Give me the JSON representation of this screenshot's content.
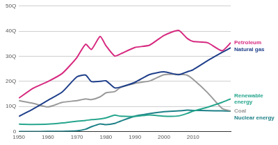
{
  "chart_data": {
    "type": "line",
    "x": [
      1950,
      1955,
      1960,
      1965,
      1970,
      1973,
      1975,
      1978,
      1980,
      1983,
      1985,
      1990,
      1995,
      2000,
      2005,
      2008,
      2010,
      2015,
      2020,
      2023
    ],
    "series": [
      {
        "name": "Petroleum",
        "color": "#d6297f",
        "values": [
          13.3,
          17.3,
          19.9,
          23.2,
          29.5,
          34.8,
          32.7,
          37.9,
          34.2,
          30.1,
          30.9,
          33.5,
          34.4,
          38.3,
          40.3,
          37.1,
          35.9,
          35.4,
          32.2,
          35.4
        ]
      },
      {
        "name": "Natural gas",
        "color": "#1f3f8a",
        "values": [
          6.0,
          9.0,
          12.4,
          15.8,
          21.8,
          22.5,
          19.9,
          20.0,
          20.2,
          17.4,
          17.7,
          19.6,
          22.7,
          23.8,
          22.6,
          23.8,
          24.6,
          28.2,
          31.5,
          33.4
        ]
      },
      {
        "name": "Renewable energy",
        "color": "#25a58c",
        "values": [
          2.9,
          2.8,
          2.9,
          3.4,
          4.1,
          4.4,
          4.7,
          5.0,
          5.4,
          6.5,
          6.1,
          6.0,
          6.6,
          6.1,
          6.2,
          7.2,
          8.1,
          9.7,
          11.6,
          13.0
        ]
      },
      {
        "name": "Coal",
        "color": "#9a9a9a",
        "values": [
          12.3,
          11.2,
          9.8,
          11.6,
          12.3,
          13.0,
          12.7,
          13.8,
          15.4,
          15.9,
          17.5,
          19.2,
          20.1,
          22.6,
          22.8,
          22.4,
          20.8,
          15.5,
          9.2,
          8.2
        ]
      },
      {
        "name": "Nuclear energy",
        "color": "#1b7f86",
        "values": [
          0,
          0,
          0.01,
          0.04,
          0.24,
          0.91,
          1.9,
          3.0,
          2.7,
          3.2,
          4.1,
          6.1,
          7.1,
          7.9,
          8.2,
          8.5,
          8.4,
          8.3,
          8.2,
          8.1
        ]
      }
    ],
    "xlim": [
      1950,
      2023
    ],
    "xticks": [
      1950,
      1960,
      1970,
      1980,
      1990,
      2000,
      2010
    ],
    "ylim": [
      0,
      50
    ],
    "yticks": [
      0,
      {
        "value": 10,
        "label": "10Q"
      },
      {
        "value": 20,
        "label": "20Q"
      },
      {
        "value": 30,
        "label": "30Q"
      },
      {
        "value": 40,
        "label": "40Q"
      },
      {
        "value": 50,
        "label": "50Q"
      }
    ],
    "grid": true
  }
}
